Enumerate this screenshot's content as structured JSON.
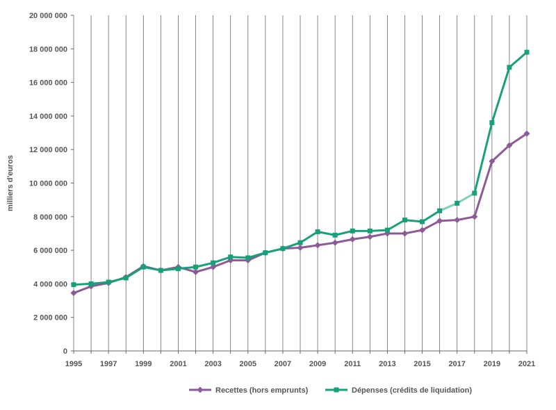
{
  "chart_data": {
    "type": "line",
    "title": "",
    "xlabel": "",
    "ylabel": "milliers  d'euros",
    "ylim": [
      0,
      20000000
    ],
    "yticks": [
      0,
      2000000,
      4000000,
      6000000,
      8000000,
      10000000,
      12000000,
      14000000,
      16000000,
      18000000,
      20000000
    ],
    "ytick_labels": [
      "0",
      "2 000 000",
      "4 000 000",
      "6 000 000",
      "8 000 000",
      "10 000 000",
      "12 000 000",
      "14 000 000",
      "16 000 000",
      "18 000 000",
      "20 000 000"
    ],
    "x": [
      1995,
      1996,
      1997,
      1998,
      1999,
      2000,
      2001,
      2002,
      2003,
      2004,
      2005,
      2006,
      2007,
      2008,
      2009,
      2010,
      2011,
      2012,
      2013,
      2014,
      2015,
      2016,
      2017,
      2018,
      2019,
      2020,
      2021
    ],
    "xtick_labels": [
      "1995",
      "1997",
      "1999",
      "2001",
      "2003",
      "2005",
      "2007",
      "2009",
      "2011",
      "2013",
      "2015",
      "2017",
      "2019",
      "2021"
    ],
    "grid": "vertical",
    "legend_position": "bottom",
    "series": [
      {
        "name": "Recettes (hors emprunts)",
        "color": "#8c5a96",
        "marker": "diamond",
        "values": [
          3450000,
          3850000,
          4050000,
          4400000,
          5050000,
          4800000,
          5000000,
          4700000,
          5000000,
          5400000,
          5400000,
          5850000,
          6100000,
          6150000,
          6300000,
          6450000,
          6650000,
          6800000,
          7000000,
          7000000,
          7200000,
          7750000,
          7800000,
          8000000,
          11300000,
          12250000,
          12950000
        ]
      },
      {
        "name": "Dépenses (crédits de liquidation)",
        "color": "#17a079",
        "highlight_color": "#7fd0b4",
        "highlight_range": [
          2016,
          2018
        ],
        "marker": "square",
        "values": [
          3950000,
          4000000,
          4100000,
          4350000,
          5000000,
          4800000,
          4900000,
          5000000,
          5250000,
          5600000,
          5550000,
          5850000,
          6100000,
          6450000,
          7100000,
          6900000,
          7150000,
          7150000,
          7200000,
          7800000,
          7700000,
          8350000,
          8800000,
          9400000,
          13600000,
          16900000,
          17800000
        ]
      }
    ]
  }
}
